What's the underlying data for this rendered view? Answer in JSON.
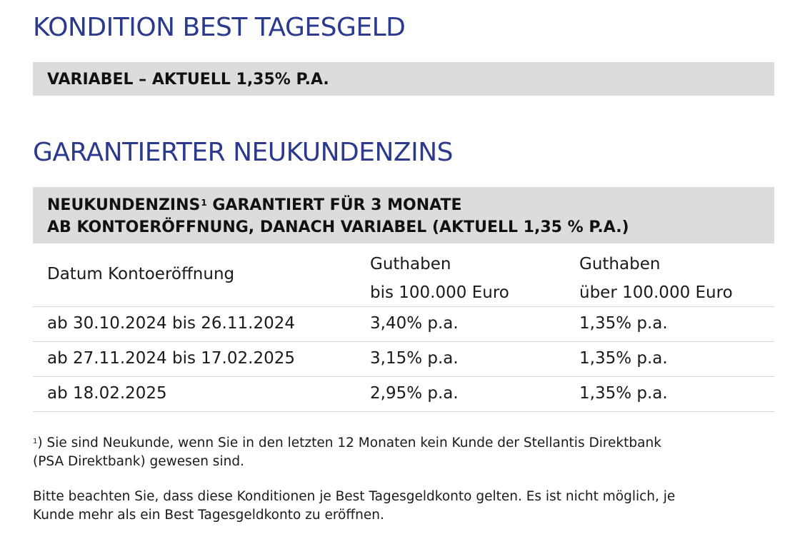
{
  "section1": {
    "title": "KONDITION BEST TAGESGELD",
    "bar": "VARIABEL – AKTUELL 1,35% P.A."
  },
  "section2": {
    "title": "GARANTIERTER NEUKUNDENZINS",
    "bar_line1_a": "NEUKUNDENZINS",
    "bar_line1_sup": "1",
    "bar_line1_b": " GARANTIERT FÜR 3 MONATE",
    "bar_line2": "AB KONTOERÖFFNUNG, DANACH VARIABEL (AKTUELL 1,35 % P.A.)"
  },
  "table": {
    "headers": {
      "col1": "Datum Kontoeröffnung",
      "col2_line1": "Guthaben",
      "col2_line2": "bis 100.000 Euro",
      "col3_line1": "Guthaben",
      "col3_line2": "über 100.000 Euro"
    },
    "rows": [
      {
        "period": "ab 30.10.2024 bis 26.11.2024",
        "rate_low": "3,40% p.a.",
        "rate_high": "1,35% p.a."
      },
      {
        "period": "ab 27.11.2024 bis 17.02.2025",
        "rate_low": "3,15% p.a.",
        "rate_high": "1,35% p.a."
      },
      {
        "period": "ab 18.02.2025",
        "rate_low": "2,95% p.a.",
        "rate_high": "1,35% p.a."
      }
    ]
  },
  "footnotes": {
    "note1_sup": "1",
    "note1_line1": ") Sie sind Neukunde, wenn Sie in den letzten 12 Monaten kein Kunde der Stellantis Direktbank",
    "note1_line2": "(PSA Direktbank) gewesen sind.",
    "note2_line1": "Bitte beachten Sie, dass diese Konditionen je Best Tagesgeldkonto gelten. Es ist nicht möglich, je",
    "note2_line2": "Kunde mehr als ein Best Tagesgeldkonto zu eröffnen."
  },
  "colors": {
    "heading": "#2b3a8c",
    "bar_background": "#dcdcdc",
    "divider": "#d6d6d6"
  }
}
